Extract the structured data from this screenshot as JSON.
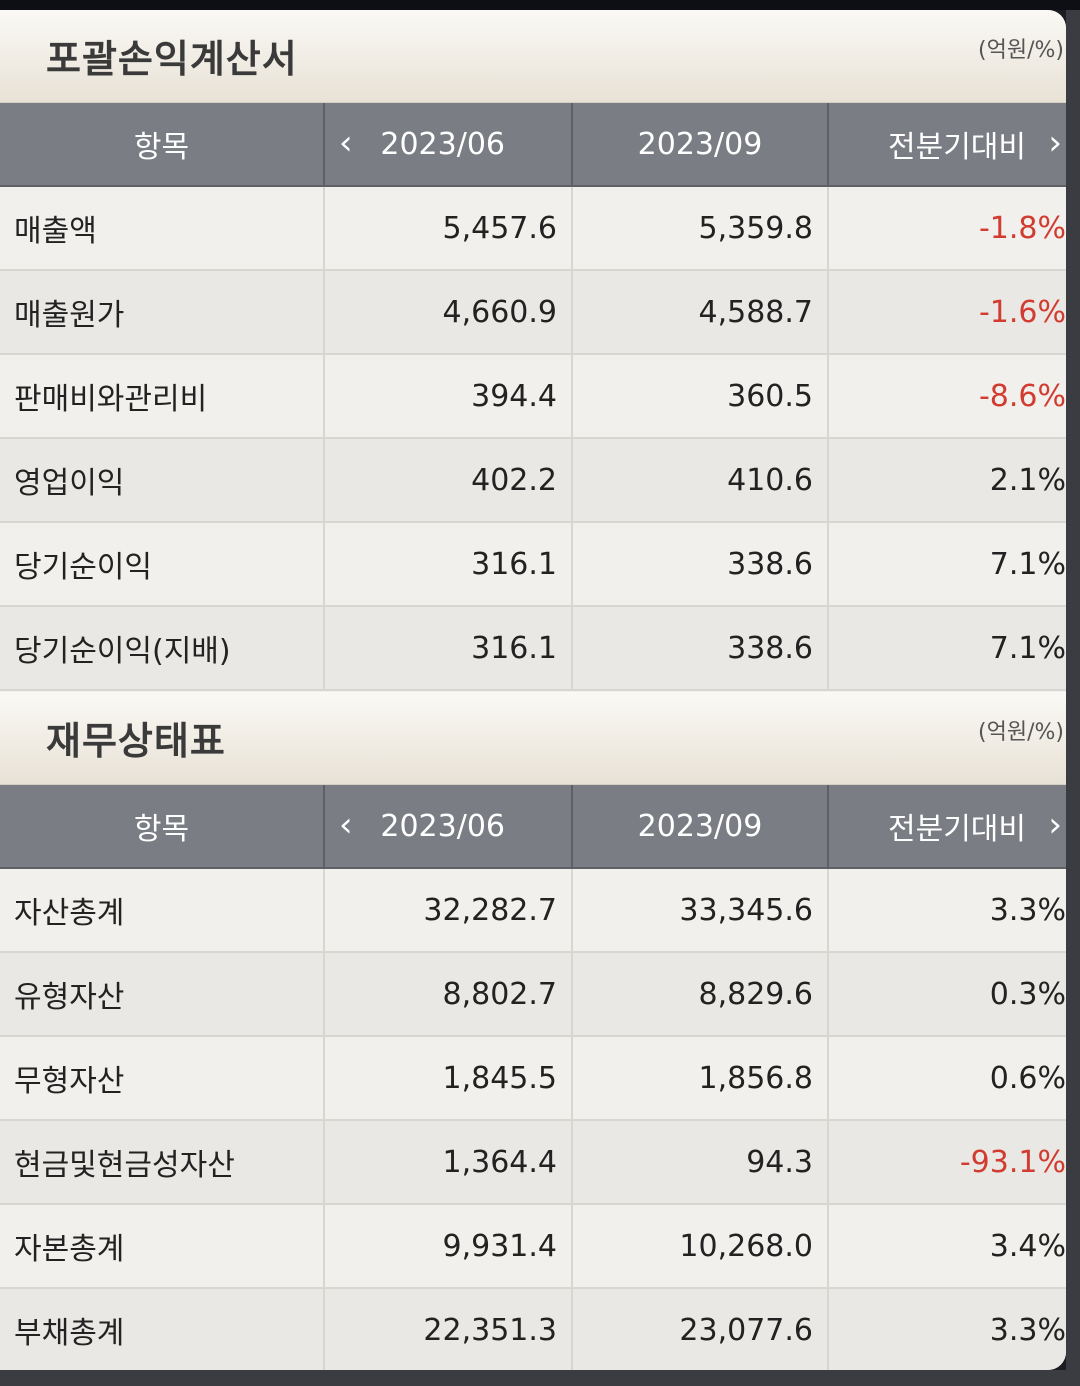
{
  "income": {
    "title": "포괄손익계산서",
    "unit": "(억원/%)",
    "headers": {
      "item": "항목",
      "period1": "2023/06",
      "period2": "2023/09",
      "compare": "전분기대비"
    },
    "rows": [
      {
        "label": "매출액",
        "p1": "5,457.6",
        "p2": "5,359.8",
        "change": "-1.8%",
        "negative": true
      },
      {
        "label": "매출원가",
        "p1": "4,660.9",
        "p2": "4,588.7",
        "change": "-1.6%",
        "negative": true
      },
      {
        "label": "판매비와관리비",
        "p1": "394.4",
        "p2": "360.5",
        "change": "-8.6%",
        "negative": true
      },
      {
        "label": "영업이익",
        "p1": "402.2",
        "p2": "410.6",
        "change": "2.1%",
        "negative": false
      },
      {
        "label": "당기순이익",
        "p1": "316.1",
        "p2": "338.6",
        "change": "7.1%",
        "negative": false
      },
      {
        "label": "당기순이익(지배)",
        "p1": "316.1",
        "p2": "338.6",
        "change": "7.1%",
        "negative": false
      }
    ]
  },
  "balance": {
    "title": "재무상태표",
    "unit": "(억원/%)",
    "headers": {
      "item": "항목",
      "period1": "2023/06",
      "period2": "2023/09",
      "compare": "전분기대비"
    },
    "rows": [
      {
        "label": "자산총계",
        "p1": "32,282.7",
        "p2": "33,345.6",
        "change": "3.3%",
        "negative": false
      },
      {
        "label": "유형자산",
        "p1": "8,802.7",
        "p2": "8,829.6",
        "change": "0.3%",
        "negative": false
      },
      {
        "label": "무형자산",
        "p1": "1,845.5",
        "p2": "1,856.8",
        "change": "0.6%",
        "negative": false
      },
      {
        "label": "현금및현금성자산",
        "p1": "1,364.4",
        "p2": "94.3",
        "change": "-93.1%",
        "negative": true
      },
      {
        "label": "자본총계",
        "p1": "9,931.4",
        "p2": "10,268.0",
        "change": "3.4%",
        "negative": false
      },
      {
        "label": "부채총계",
        "p1": "22,351.3",
        "p2": "23,077.6",
        "change": "3.3%",
        "negative": false
      }
    ]
  },
  "icons": {
    "prev": "chevron-left-icon",
    "next": "chevron-right-icon"
  },
  "colors": {
    "negative": "#d23b2f",
    "header_bg": "#7b7d84"
  }
}
